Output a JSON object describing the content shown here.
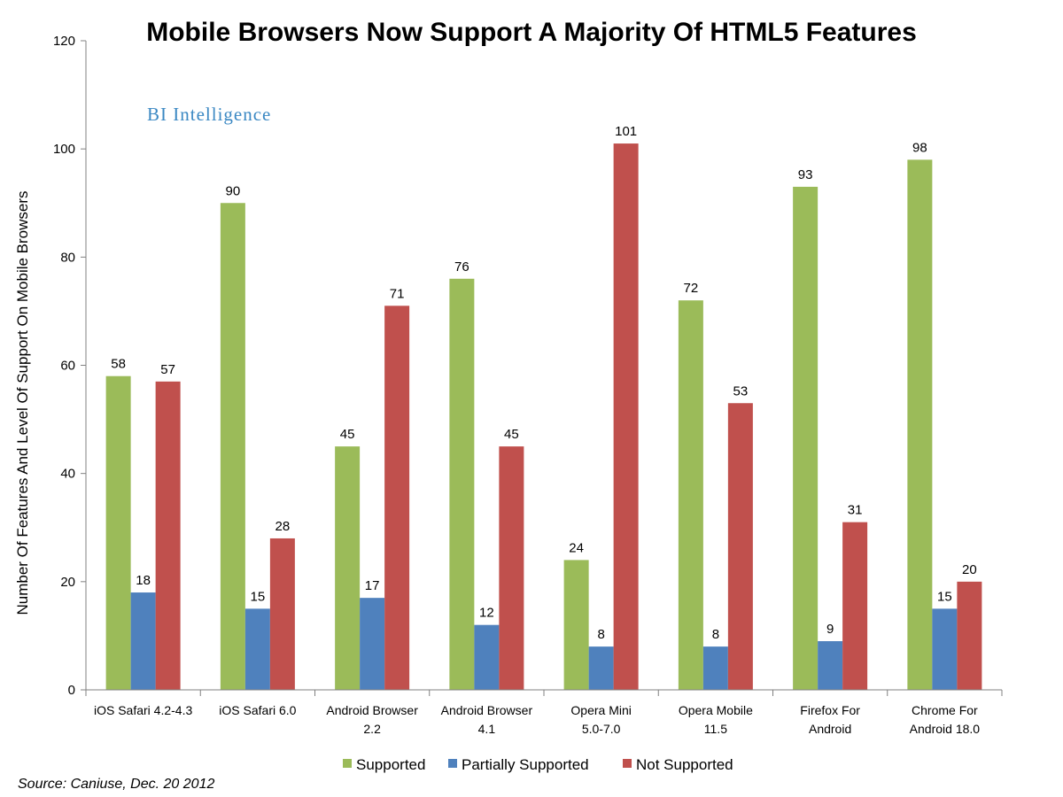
{
  "chart_data": {
    "type": "bar",
    "title": "Mobile Browsers Now Support A Majority Of HTML5 Features",
    "ylabel": "Number Of Features And Level Of Support On Mobile Browsers",
    "xlabel": "",
    "ylim": [
      0,
      120
    ],
    "yticks": [
      0,
      20,
      40,
      60,
      80,
      100,
      120
    ],
    "grid": false,
    "legend_position": "bottom",
    "categories": [
      [
        "iOS Safari 4.2-4.3"
      ],
      [
        "iOS Safari 6.0"
      ],
      [
        "Android Browser",
        "2.2"
      ],
      [
        "Android Browser",
        "4.1"
      ],
      [
        "Opera Mini",
        "5.0-7.0"
      ],
      [
        "Opera Mobile",
        "11.5"
      ],
      [
        "Firefox For",
        "Android"
      ],
      [
        "Chrome For",
        "Android 18.0"
      ]
    ],
    "series": [
      {
        "name": "Supported",
        "color": "#9bbb59",
        "values": [
          58,
          90,
          45,
          76,
          24,
          72,
          93,
          98
        ]
      },
      {
        "name": "Partially Supported",
        "color": "#4f81bd",
        "values": [
          18,
          15,
          17,
          12,
          8,
          8,
          9,
          15
        ]
      },
      {
        "name": "Not Supported",
        "color": "#c0504d",
        "values": [
          57,
          28,
          71,
          45,
          101,
          53,
          31,
          20
        ]
      }
    ]
  },
  "brand": {
    "text": "BI Intelligence",
    "color": "#3b88c3"
  },
  "source": "Source: Caniuse, Dec. 20 2012"
}
